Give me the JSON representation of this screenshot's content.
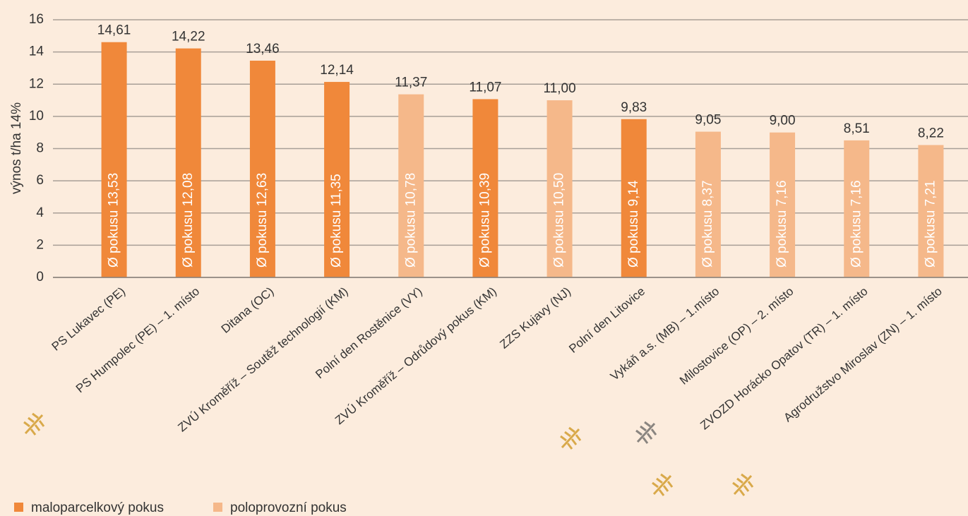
{
  "chart_data": {
    "type": "bar",
    "y_axis_label": "výnos t/ha 14%",
    "categories": [
      "PS Lukavec (PE)",
      "PS Humpolec (PE) – 1. místo",
      "Ditana (OC)",
      "ZVÚ Kroměříž – Soutěž technologií (KM)",
      "Polní den Rostěnice (VY)",
      "ZVÚ Kroměříž – Odrůdový pokus (KM)",
      "ZZS Kujavy (NJ)",
      "Polní den Litovice",
      "Vykáň a.s. (MB) – 1.místo",
      "Milostovice (OP) – 2. místo",
      "ZVOZD Horácko Opatov (TR) – 1. místo",
      "Agrodružstvo Miroslav (ZN) – 1. místo"
    ],
    "series": [
      {
        "name": "maloparcelkový pokus",
        "color": "#f0883a",
        "values": [
          14.61,
          14.22,
          13.46,
          12.14,
          null,
          11.07,
          null,
          9.83,
          null,
          null,
          null,
          null
        ],
        "value_labels": [
          "14,61",
          "14,22",
          "13,46",
          "12,14",
          null,
          "11,07",
          null,
          "9,83",
          null,
          null,
          null,
          null
        ],
        "inner_labels": [
          "Ø pokusu 13,53",
          "Ø pokusu 12,08",
          "Ø pokusu 12,63",
          "Ø pokusu 11,35",
          null,
          "Ø pokusu 10,39",
          null,
          "Ø pokusu 9,14",
          null,
          null,
          null,
          null
        ]
      },
      {
        "name": "poloprovozní pokus",
        "color": "#f5b88a",
        "values": [
          null,
          null,
          null,
          null,
          11.37,
          null,
          11.0,
          null,
          9.05,
          9.0,
          8.51,
          8.22
        ],
        "value_labels": [
          null,
          null,
          null,
          null,
          "11,37",
          null,
          "11,00",
          null,
          "9,05",
          "9,00",
          "8,51",
          "8,22"
        ],
        "inner_labels": [
          null,
          null,
          null,
          null,
          "Ø pokusu 10,78",
          null,
          "Ø pokusu 10,50",
          null,
          "Ø pokusu 8,37",
          "Ø pokusu 7,16",
          "Ø pokusu 7,16",
          "Ø pokusu 7,21"
        ]
      }
    ],
    "ylim": [
      0,
      16
    ],
    "yticks": [
      0,
      2,
      4,
      6,
      8,
      10,
      12,
      14,
      16
    ],
    "grid": true
  }
}
